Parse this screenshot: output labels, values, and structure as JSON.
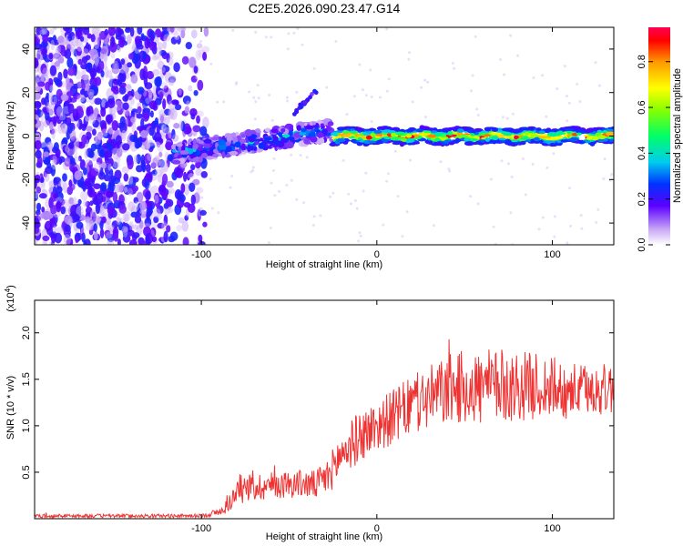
{
  "chart_data": [
    {
      "type": "heatmap",
      "title": "C2E5.2026.090.23.47.G14",
      "xlabel": "Height of straight line (km)",
      "ylabel": "Frequency (Hz)",
      "xlim": [
        -195,
        135
      ],
      "ylim": [
        -50,
        50
      ],
      "x_ticks": [
        -100,
        0,
        100
      ],
      "x_tick_labels": [
        "-100",
        "0",
        "100"
      ],
      "y_ticks": [
        -40,
        -20,
        0,
        20,
        40
      ],
      "y_tick_labels": [
        "-40",
        "-20",
        "0",
        "20",
        "40"
      ],
      "colorbar": {
        "label": "Normalized spectral amplitude",
        "range": [
          0.0,
          0.95
        ],
        "ticks": [
          0.0,
          0.2,
          0.4,
          0.6,
          0.8
        ],
        "tick_labels": [
          "0.0",
          "0.2",
          "0.4",
          "0.6",
          "0.8"
        ]
      },
      "regions": [
        {
          "name": "noise",
          "x_range": [
            -195,
            -105
          ],
          "y_range": [
            -50,
            50
          ],
          "amplitude": 0.1
        },
        {
          "name": "weak-trace",
          "x_range": [
            -115,
            -25
          ],
          "center_freq_start": -8,
          "center_freq_end": 3,
          "amplitude": 0.35
        },
        {
          "name": "strong-trace",
          "x_range": [
            -25,
            135
          ],
          "center_freq": 0,
          "amplitude": 0.85
        },
        {
          "name": "spurious",
          "x": -35,
          "y": 20,
          "amplitude": 0.2
        }
      ]
    },
    {
      "type": "line",
      "xlabel": "Height of straight line (km)",
      "ylabel": "SNR (10 * v/v)",
      "y_multiplier_label": "(x10",
      "y_multiplier_exp": "4",
      "y_multiplier_close": ")",
      "xlim": [
        -195,
        135
      ],
      "ylim": [
        0,
        2.35
      ],
      "x_ticks": [
        -100,
        0,
        100
      ],
      "x_tick_labels": [
        "-100",
        "0",
        "100"
      ],
      "y_ticks": [
        0.5,
        1.0,
        1.5,
        2.0
      ],
      "y_tick_labels": [
        "0.5",
        "1.0",
        "1.5",
        "2.0"
      ],
      "color": "#ee3333",
      "series": [
        {
          "name": "SNR",
          "x": [
            -195,
            -140,
            -100,
            -88,
            -78,
            -60,
            -45,
            -35,
            -28,
            -20,
            -10,
            0,
            10,
            20,
            30,
            40,
            50,
            60,
            70,
            80,
            90,
            100,
            110,
            120,
            135
          ],
          "y": [
            0.03,
            0.03,
            0.03,
            0.08,
            0.32,
            0.36,
            0.38,
            0.36,
            0.45,
            0.7,
            0.88,
            1.0,
            1.1,
            1.22,
            1.3,
            1.38,
            1.42,
            1.4,
            1.43,
            1.42,
            1.43,
            1.4,
            1.38,
            1.38,
            1.4
          ],
          "noise": [
            0.02,
            0.02,
            0.02,
            0.05,
            0.16,
            0.15,
            0.15,
            0.16,
            0.2,
            0.25,
            0.28,
            0.28,
            0.3,
            0.32,
            0.35,
            0.38,
            0.4,
            0.42,
            0.4,
            0.38,
            0.36,
            0.35,
            0.3,
            0.28,
            0.28
          ]
        }
      ]
    }
  ]
}
